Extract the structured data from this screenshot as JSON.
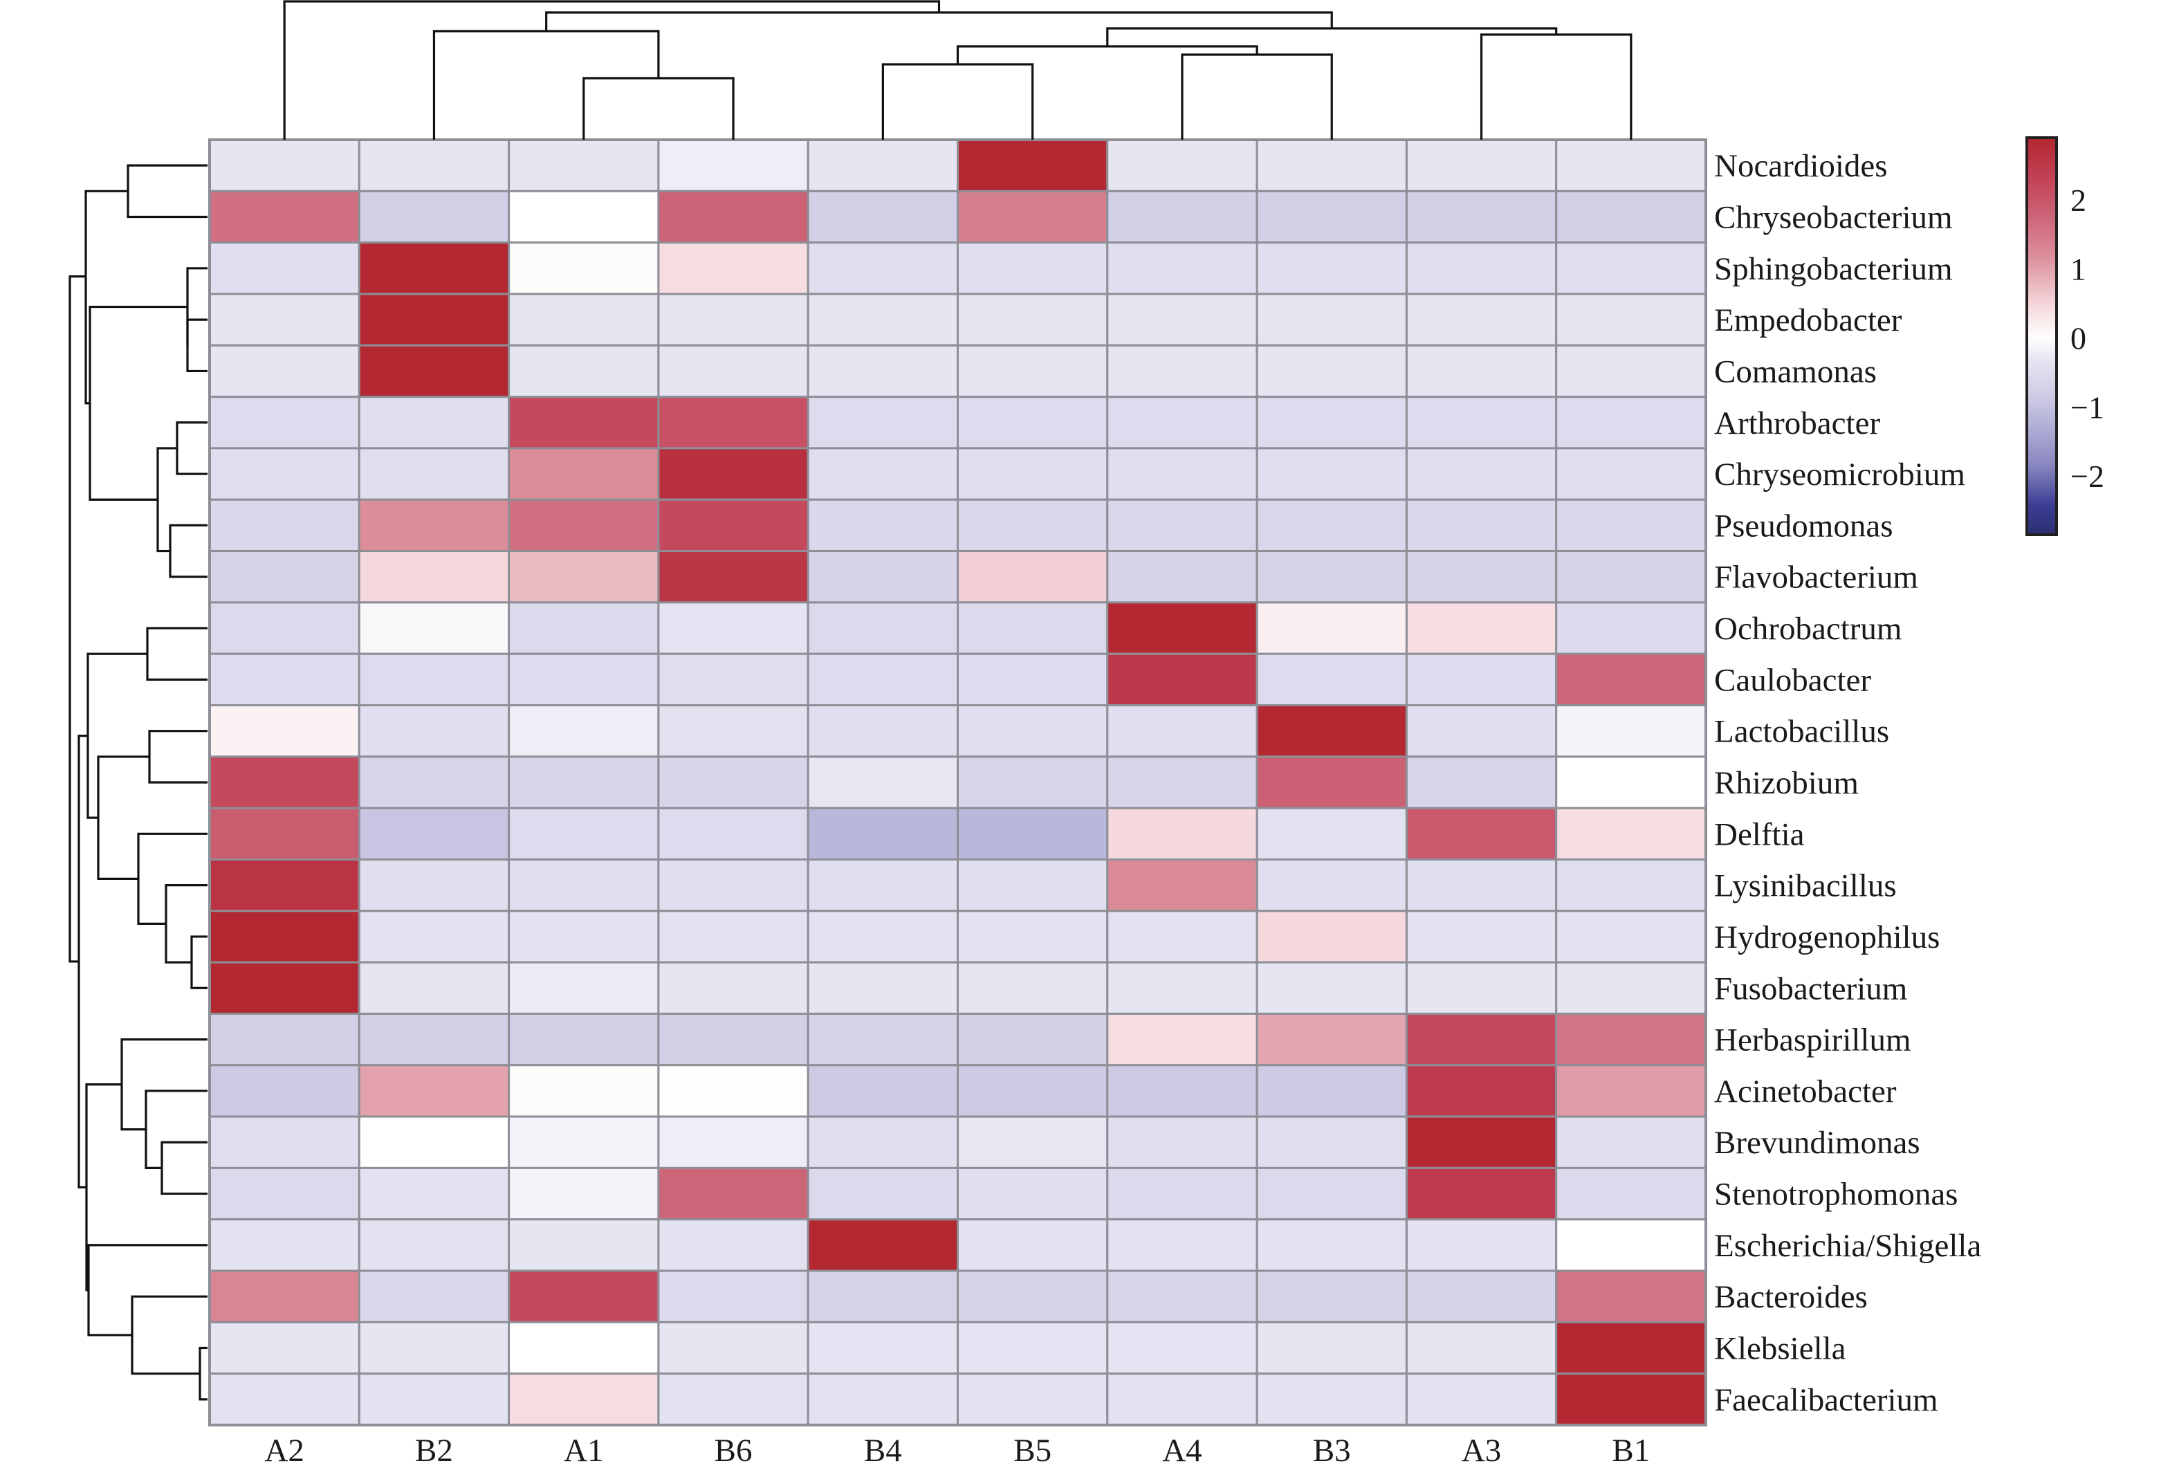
{
  "chart_data": {
    "type": "heatmap",
    "title": "",
    "xlabel": "",
    "ylabel": "",
    "columns": [
      "A2",
      "B2",
      "A1",
      "B6",
      "B4",
      "B5",
      "A4",
      "B3",
      "A3",
      "B1"
    ],
    "rows": [
      "Nocardioides",
      "Chryseobacterium",
      "Sphingobacterium",
      "Empedobacter",
      "Comamonas",
      "Arthrobacter",
      "Chryseomicrobium",
      "Pseudomonas",
      "Flavobacterium",
      "Ochrobactrum",
      "Caulobacter",
      "Lactobacillus",
      "Rhizobium",
      "Delftia",
      "Lysinibacillus",
      "Hydrogenophilus",
      "Fusobacterium",
      "Herbaspirillum",
      "Acinetobacter",
      "Brevundimonas",
      "Stenotrophomonas",
      "Escherichia/Shigella",
      "Bacteroides",
      "Klebsiella",
      "Faecalibacterium"
    ],
    "values": [
      [
        -0.32,
        -0.32,
        -0.32,
        -0.22,
        -0.32,
        2.85,
        -0.32,
        -0.32,
        -0.32,
        -0.32
      ],
      [
        1.6,
        -0.75,
        0.0,
        1.8,
        -0.75,
        1.4,
        -0.75,
        -0.75,
        -0.75,
        -0.75
      ],
      [
        -0.45,
        2.85,
        0.05,
        0.4,
        -0.45,
        -0.45,
        -0.45,
        -0.45,
        -0.45,
        -0.45
      ],
      [
        -0.32,
        2.85,
        -0.32,
        -0.32,
        -0.32,
        -0.32,
        -0.32,
        -0.32,
        -0.32,
        -0.32
      ],
      [
        -0.32,
        2.85,
        -0.32,
        -0.32,
        -0.32,
        -0.32,
        -0.32,
        -0.32,
        -0.32,
        -0.32
      ],
      [
        -0.5,
        -0.45,
        2.2,
        2.05,
        -0.5,
        -0.5,
        -0.5,
        -0.5,
        -0.5,
        -0.5
      ],
      [
        -0.45,
        -0.45,
        1.2,
        2.65,
        -0.45,
        -0.45,
        -0.45,
        -0.45,
        -0.45,
        -0.45
      ],
      [
        -0.6,
        1.2,
        1.6,
        2.2,
        -0.6,
        -0.6,
        -0.6,
        -0.6,
        -0.6,
        -0.6
      ],
      [
        -0.7,
        0.45,
        0.75,
        2.55,
        -0.7,
        0.55,
        -0.7,
        -0.7,
        -0.7,
        -0.7
      ],
      [
        -0.55,
        -0.08,
        -0.55,
        -0.35,
        -0.55,
        -0.55,
        2.85,
        0.2,
        0.4,
        -0.55
      ],
      [
        -0.5,
        -0.5,
        -0.5,
        -0.45,
        -0.5,
        -0.5,
        2.5,
        -0.5,
        -0.5,
        1.75
      ],
      [
        0.15,
        -0.45,
        -0.22,
        -0.4,
        -0.45,
        -0.45,
        -0.45,
        2.85,
        -0.45,
        -0.15
      ],
      [
        2.2,
        -0.65,
        -0.65,
        -0.65,
        -0.3,
        -0.65,
        -0.65,
        1.85,
        -0.65,
        0.0
      ],
      [
        1.9,
        -0.95,
        -0.5,
        -0.5,
        -1.15,
        -1.15,
        0.45,
        -0.38,
        1.95,
        0.4
      ],
      [
        2.6,
        -0.45,
        -0.45,
        -0.45,
        -0.45,
        -0.45,
        1.25,
        -0.45,
        -0.45,
        -0.45
      ],
      [
        2.85,
        -0.38,
        -0.38,
        -0.38,
        -0.38,
        -0.38,
        -0.38,
        0.45,
        -0.38,
        -0.38
      ],
      [
        2.85,
        -0.32,
        -0.25,
        -0.32,
        -0.32,
        -0.32,
        -0.32,
        -0.32,
        -0.32,
        -0.32
      ],
      [
        -0.75,
        -0.75,
        -0.75,
        -0.75,
        -0.7,
        -0.75,
        0.4,
        0.95,
        2.2,
        1.55
      ],
      [
        -0.85,
        1.0,
        0.05,
        0.01,
        -0.85,
        -0.85,
        -0.85,
        -0.85,
        2.45,
        1.05
      ],
      [
        -0.45,
        0.0,
        -0.15,
        -0.22,
        -0.45,
        -0.3,
        -0.45,
        -0.45,
        2.85,
        -0.45
      ],
      [
        -0.55,
        -0.38,
        -0.15,
        1.75,
        -0.55,
        -0.45,
        -0.55,
        -0.55,
        2.45,
        -0.55
      ],
      [
        -0.38,
        -0.38,
        -0.32,
        -0.38,
        2.85,
        -0.38,
        -0.38,
        -0.38,
        -0.38,
        0.0
      ],
      [
        1.3,
        -0.6,
        2.2,
        -0.55,
        -0.7,
        -0.7,
        -0.65,
        -0.7,
        -0.7,
        1.55
      ],
      [
        -0.32,
        -0.32,
        0.0,
        -0.32,
        -0.35,
        -0.35,
        -0.35,
        -0.32,
        -0.32,
        2.85
      ],
      [
        -0.38,
        -0.38,
        0.4,
        -0.38,
        -0.38,
        -0.38,
        -0.38,
        -0.38,
        -0.38,
        2.85
      ]
    ],
    "colorbar": {
      "ticks": [
        2,
        1,
        0,
        -1,
        -2
      ],
      "tick_labels": [
        "2",
        "1",
        "0",
        "−1",
        "−2"
      ],
      "range": [
        -2.85,
        2.9
      ],
      "colors": {
        "low": "#2b2f6e",
        "mid_low": "#3b3d94",
        "zero": "#ffffff",
        "high": "#b2262e"
      },
      "placement": "top-right"
    },
    "col_dendrogram": {
      "merges": [
        {
          "left": "A1",
          "right": "B6",
          "height": 0.22
        },
        {
          "left": "B2",
          "right": [
            "A1",
            "B6"
          ],
          "height": 0.53
        },
        {
          "left": "B4",
          "right": "B5",
          "height": 0.36
        },
        {
          "left": "A4",
          "right": "B3",
          "height": 0.42
        },
        {
          "left": [
            "B4",
            "B5"
          ],
          "right": [
            "A4",
            "B3"
          ],
          "height": 0.62
        },
        {
          "left": "A3",
          "right": "B1",
          "height": 0.71
        },
        {
          "left": [
            "B4",
            "B5",
            "A4",
            "B3"
          ],
          "right": [
            "A3",
            "B1"
          ],
          "height": 0.76
        },
        {
          "left": [
            "B2",
            "A1",
            "B6"
          ],
          "right": [
            "B4",
            "B5",
            "A4",
            "B3",
            "A3",
            "B1"
          ],
          "height": 0.9
        },
        {
          "left": "A2",
          "right": "rest",
          "height": 1.0
        }
      ]
    },
    "row_dendrogram": {
      "note": "hierarchical clustering of genera (Euclidean, complete linkage style layout)"
    }
  }
}
